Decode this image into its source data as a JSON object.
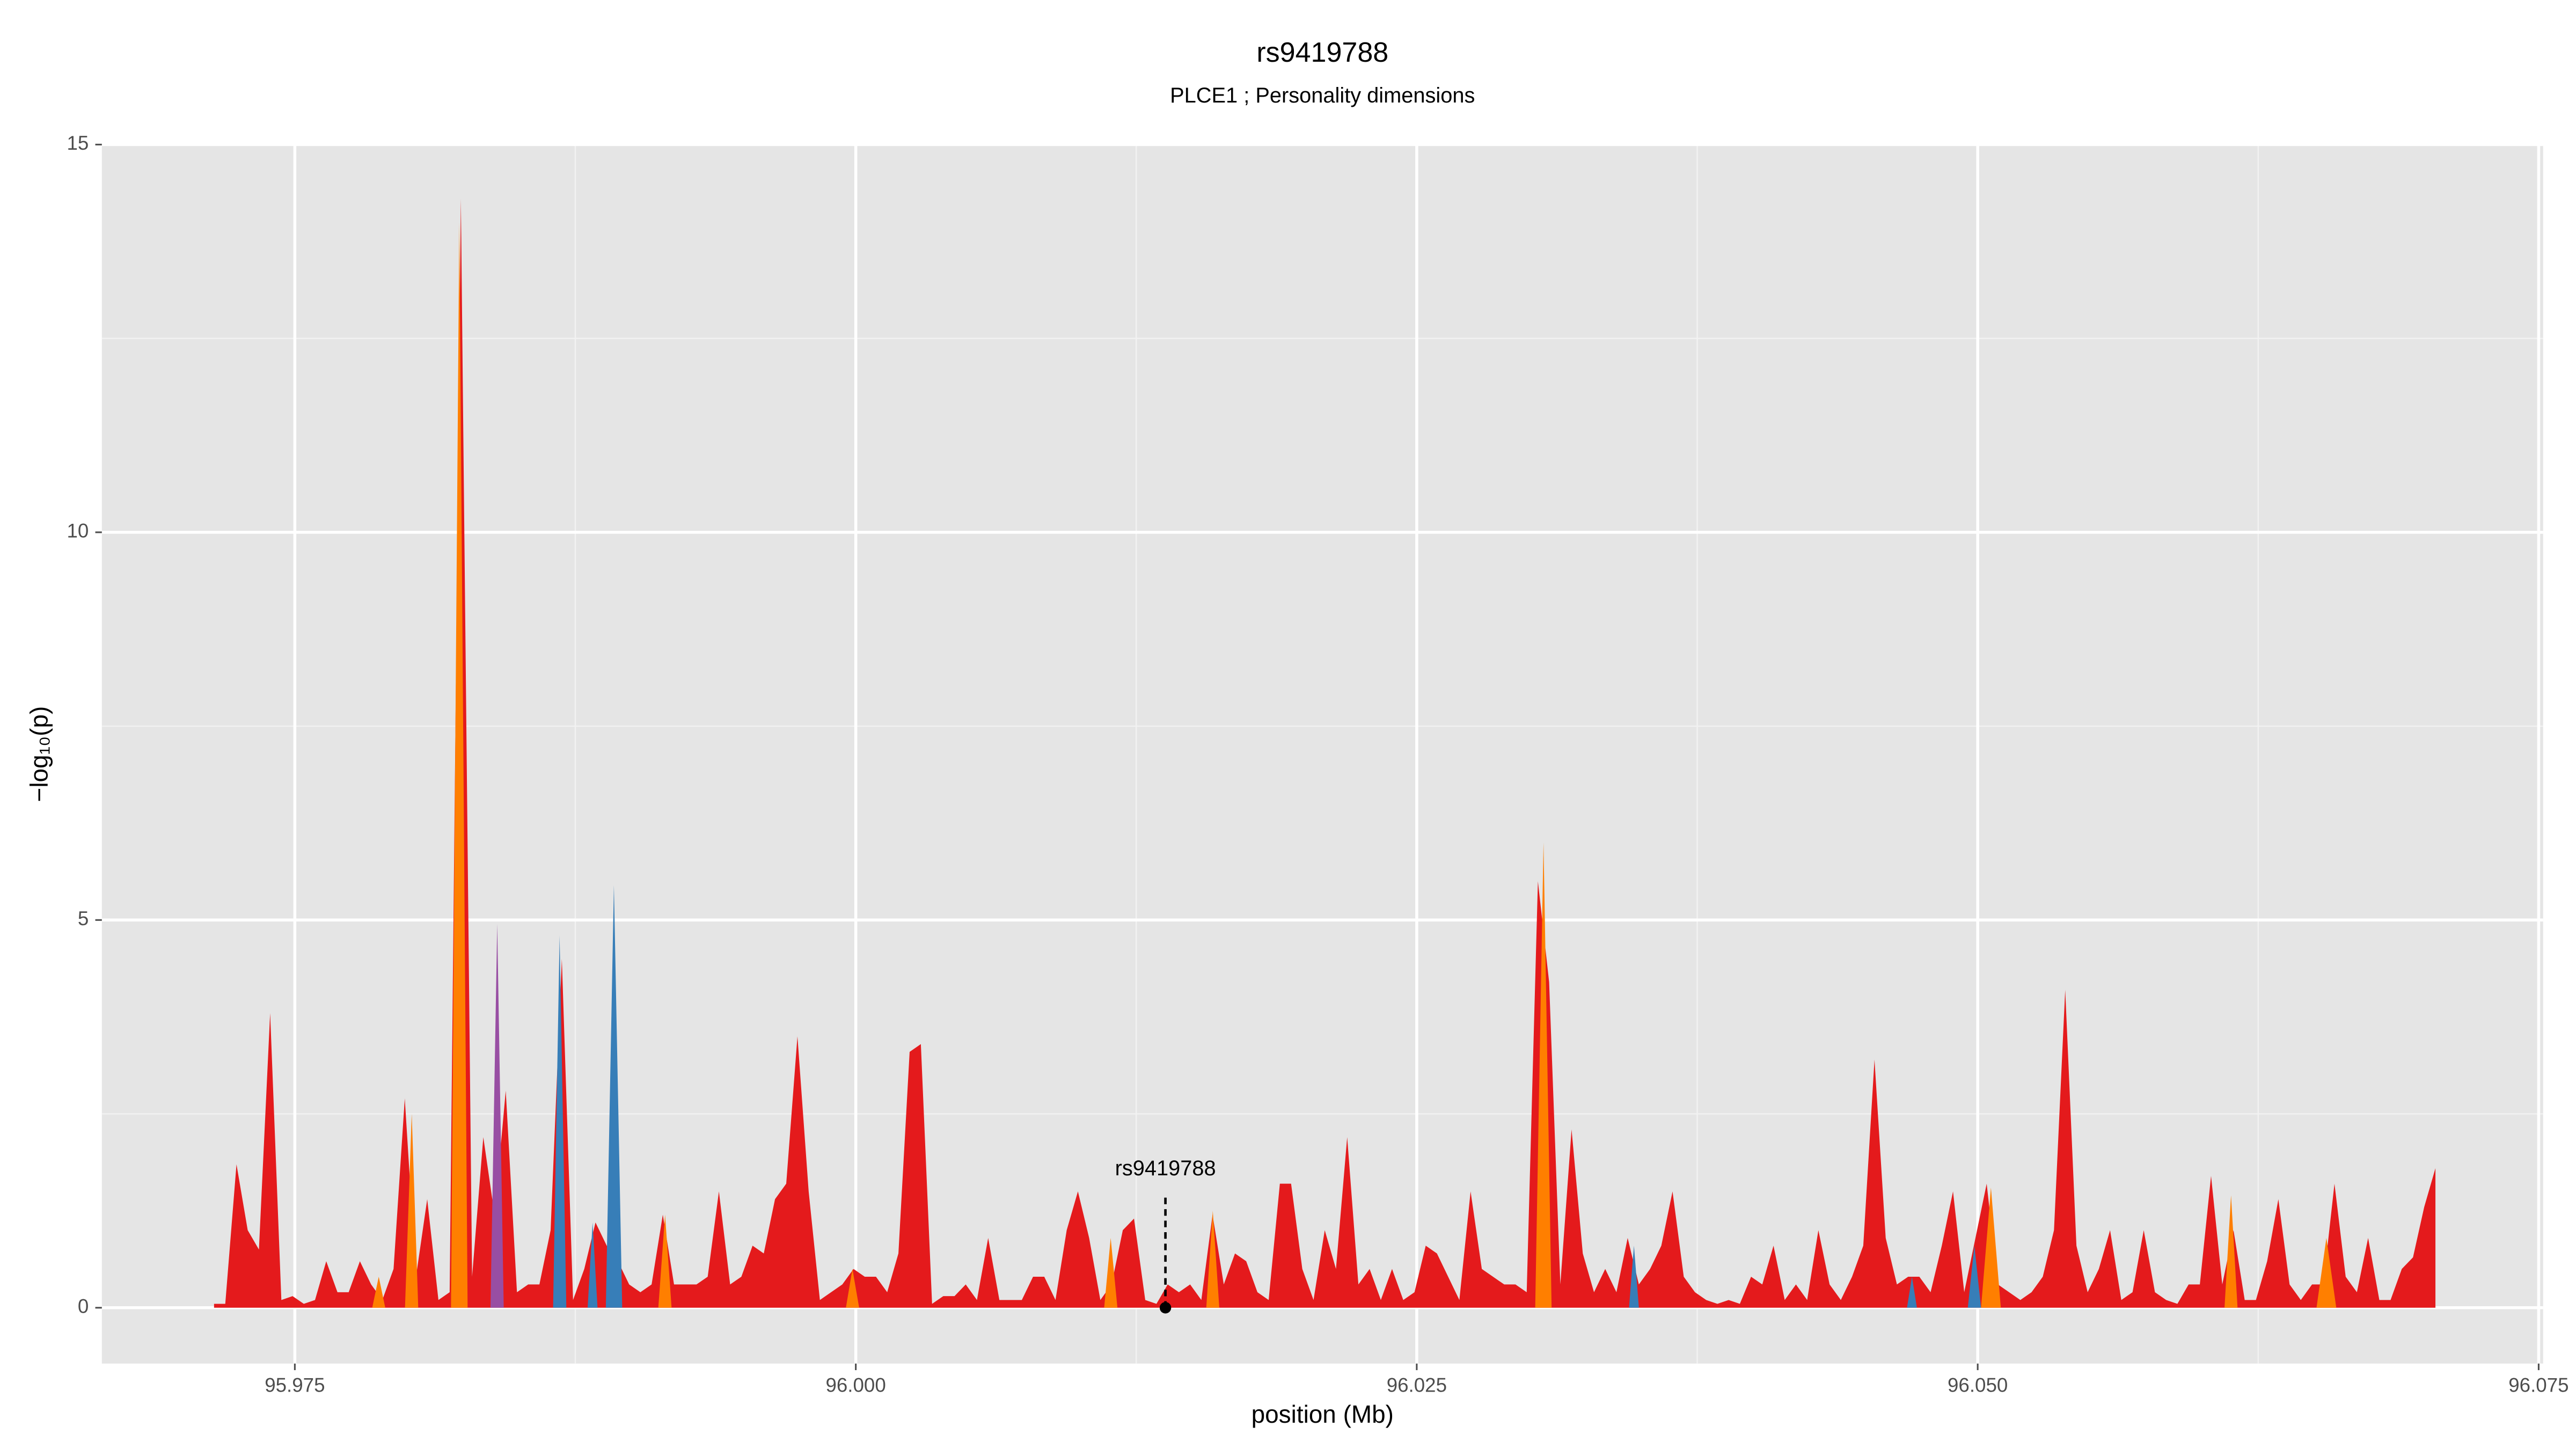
{
  "chart_data": {
    "type": "area",
    "title": "rs9419788",
    "subtitle": "PLCE1 ; Personality dimensions",
    "xlabel": "position (Mb)",
    "ylabel": "−log₁₀(p)",
    "xlim": [
      95.9664,
      96.0752
    ],
    "ylim": [
      -0.72,
      15
    ],
    "xticks": [
      95.975,
      {
        "value": 96,
        "label": "96.000"
      },
      96.025,
      {
        "value": 96.05,
        "label": "96.050"
      },
      96.075
    ],
    "xminor": [
      95.9875,
      96.0125,
      96.0375,
      96.0625
    ],
    "yticks": [
      0,
      5,
      10,
      15
    ],
    "yminor": [
      2.5,
      7.5,
      12.5
    ],
    "grid": true,
    "background": "#e5e5e5",
    "annotation": {
      "text": "rs9419788",
      "x": 96.0138,
      "y": 0
    },
    "series": [
      {
        "color": "#e41a1c",
        "x": [
          95.9714,
          95.9719,
          95.9724,
          95.9729,
          95.9734,
          95.9739,
          95.9744,
          95.9749,
          95.9754,
          95.9759,
          95.9764,
          95.9769,
          95.9774,
          95.9779,
          95.9784,
          95.9789,
          95.9794,
          95.9799,
          95.9804,
          95.9809,
          95.9814,
          95.9819,
          95.9824,
          95.9829,
          95.9834,
          95.9839,
          95.9844,
          95.9849,
          95.9854,
          95.9859,
          95.9864,
          95.9869,
          95.9874,
          95.9879,
          95.9884,
          95.9889,
          95.9894,
          95.9899,
          95.9904,
          95.9909,
          95.9914,
          95.9919,
          95.9924,
          95.9929,
          95.9934,
          95.9939,
          95.9944,
          95.9949,
          95.9954,
          95.9959,
          95.9964,
          95.9969,
          95.9974,
          95.9979,
          95.9984,
          95.9989,
          95.9994,
          95.9999,
          96.0004,
          96.0009,
          96.0014,
          96.0019,
          96.0024,
          96.0029,
          96.0034,
          96.0039,
          96.0044,
          96.0049,
          96.0054,
          96.0059,
          96.0064,
          96.0069,
          96.0074,
          96.0079,
          96.0084,
          96.0089,
          96.0094,
          96.0099,
          96.0104,
          96.0109,
          96.0114,
          96.0119,
          96.0124,
          96.0129,
          96.0134,
          96.0139,
          96.0144,
          96.0149,
          96.0154,
          96.0159,
          96.0164,
          96.0169,
          96.0174,
          96.0179,
          96.0184,
          96.0189,
          96.0194,
          96.0199,
          96.0204,
          96.0209,
          96.0214,
          96.0219,
          96.0224,
          96.0229,
          96.0234,
          96.0239,
          96.0244,
          96.0249,
          96.0254,
          96.0259,
          96.0264,
          96.0269,
          96.0274,
          96.0279,
          96.0284,
          96.0289,
          96.0294,
          96.0299,
          96.0304,
          96.0309,
          96.0314,
          96.0319,
          96.0324,
          96.0329,
          96.0334,
          96.0339,
          96.0344,
          96.0349,
          96.0354,
          96.0359,
          96.0364,
          96.0369,
          96.0374,
          96.0379,
          96.0384,
          96.0389,
          96.0394,
          96.0399,
          96.0404,
          96.0409,
          96.0414,
          96.0419,
          96.0424,
          96.0429,
          96.0434,
          96.0439,
          96.0444,
          96.0449,
          96.0454,
          96.0459,
          96.0464,
          96.0469,
          96.0474,
          96.0479,
          96.0484,
          96.0489,
          96.0494,
          96.0499,
          96.0504,
          96.0509,
          96.0514,
          96.0519,
          96.0524,
          96.0529,
          96.0534,
          96.0539,
          96.0544,
          96.0549,
          96.0554,
          96.0559,
          96.0564,
          96.0569,
          96.0574,
          96.0579,
          96.0584,
          96.0589,
          96.0594,
          96.0599,
          96.0604,
          96.0609,
          96.0614,
          96.0619,
          96.0624,
          96.0629,
          96.0634,
          96.0639,
          96.0644,
          96.0649,
          96.0654,
          96.0659,
          96.0664,
          96.0669,
          96.0674,
          96.0679,
          96.0684,
          96.0689,
          96.0694,
          96.0699,
          96.0704
        ],
        "values": [
          0.05,
          0.05,
          1.85,
          1.0,
          0.75,
          3.8,
          0.1,
          0.15,
          0.05,
          0.1,
          0.6,
          0.2,
          0.2,
          0.6,
          0.3,
          0.1,
          0.5,
          2.7,
          0.4,
          1.4,
          0.1,
          0.2,
          14.3,
          0.4,
          2.2,
          1.2,
          2.8,
          0.2,
          0.3,
          0.3,
          1.0,
          4.5,
          0.1,
          0.5,
          1.1,
          0.8,
          0.6,
          0.3,
          0.2,
          0.3,
          1.2,
          0.3,
          0.3,
          0.3,
          0.4,
          1.5,
          0.3,
          0.4,
          0.8,
          0.7,
          1.4,
          1.6,
          3.5,
          1.5,
          0.1,
          0.2,
          0.3,
          0.5,
          0.4,
          0.4,
          0.2,
          0.7,
          3.3,
          3.4,
          0.05,
          0.15,
          0.15,
          0.3,
          0.1,
          0.9,
          0.1,
          0.1,
          0.1,
          0.4,
          0.4,
          0.1,
          1.0,
          1.5,
          0.9,
          0.1,
          0.3,
          1.0,
          1.15,
          0.1,
          0.05,
          0.3,
          0.2,
          0.3,
          0.1,
          1.2,
          0.3,
          0.7,
          0.6,
          0.2,
          0.1,
          1.6,
          1.6,
          0.5,
          0.1,
          1.0,
          0.5,
          2.2,
          0.3,
          0.5,
          0.1,
          0.5,
          0.1,
          0.2,
          0.8,
          0.7,
          0.4,
          0.1,
          1.5,
          0.5,
          0.4,
          0.3,
          0.3,
          0.2,
          5.5,
          4.2,
          0.3,
          2.3,
          0.7,
          0.2,
          0.5,
          0.2,
          0.9,
          0.3,
          0.5,
          0.8,
          1.5,
          0.4,
          0.2,
          0.1,
          0.05,
          0.1,
          0.05,
          0.4,
          0.3,
          0.8,
          0.1,
          0.3,
          0.1,
          1.0,
          0.3,
          0.1,
          0.4,
          0.8,
          3.2,
          0.9,
          0.3,
          0.4,
          0.4,
          0.2,
          0.8,
          1.5,
          0.2,
          0.9,
          1.6,
          0.3,
          0.2,
          0.1,
          0.2,
          0.4,
          1.0,
          4.1,
          0.8,
          0.2,
          0.5,
          1.0,
          0.1,
          0.2,
          1.0,
          0.2,
          0.1,
          0.05,
          0.3,
          0.3,
          1.7,
          0.3,
          1.0,
          0.1,
          0.1,
          0.6,
          1.4,
          0.3,
          0.1,
          0.3,
          0.3,
          1.6,
          0.4,
          0.2,
          0.9,
          0.1,
          0.1,
          0.5,
          0.65,
          1.3,
          1.8
        ]
      },
      {
        "color": "#ff7f00",
        "x": [
          95.97845,
          95.97874,
          95.97903,
          null,
          95.97991,
          95.98021,
          95.9805,
          null,
          95.98196,
          95.98233,
          95.9827,
          null,
          95.9912,
          95.9915,
          95.99179,
          null,
          95.99956,
          95.99985,
          96.00015,
          null,
          96.01107,
          96.01136,
          96.01166,
          null,
          96.01562,
          96.01591,
          96.0162,
          null,
          96.03028,
          96.03065,
          96.03101,
          null,
          96.05015,
          96.05059,
          96.05103,
          null,
          96.061,
          96.06129,
          96.06158,
          null,
          96.0651,
          96.06554,
          96.06598
        ],
        "values": [
          0,
          0.4,
          0,
          null,
          0,
          2.5,
          0,
          null,
          0,
          14,
          0,
          null,
          0,
          1.2,
          0,
          null,
          0,
          0.5,
          0,
          null,
          0,
          0.9,
          0,
          null,
          0,
          1.25,
          0,
          null,
          0,
          6.0,
          0,
          null,
          0,
          1.55,
          0,
          null,
          0,
          1.45,
          0,
          null,
          0,
          0.9,
          0
        ]
      },
      {
        "color": "#377eb8",
        "x": [
          95.98651,
          95.9868,
          95.9871,
          null,
          95.98805,
          95.98827,
          95.98849,
          null,
          95.98886,
          95.98922,
          95.98959,
          null,
          96.03446,
          96.03468,
          96.0349,
          null,
          96.04685,
          96.04707,
          96.04729,
          null,
          96.04956,
          96.04985,
          96.05015
        ],
        "values": [
          0,
          4.8,
          0,
          null,
          0,
          1.1,
          0,
          null,
          0,
          5.45,
          0,
          null,
          0,
          0.8,
          0,
          null,
          0,
          0.4,
          0,
          null,
          0,
          0.8,
          0
        ]
      },
      {
        "color": "#984ea3",
        "x": [
          95.98372,
          95.98402,
          95.98431
        ],
        "values": [
          0,
          4.95,
          0
        ]
      }
    ]
  }
}
